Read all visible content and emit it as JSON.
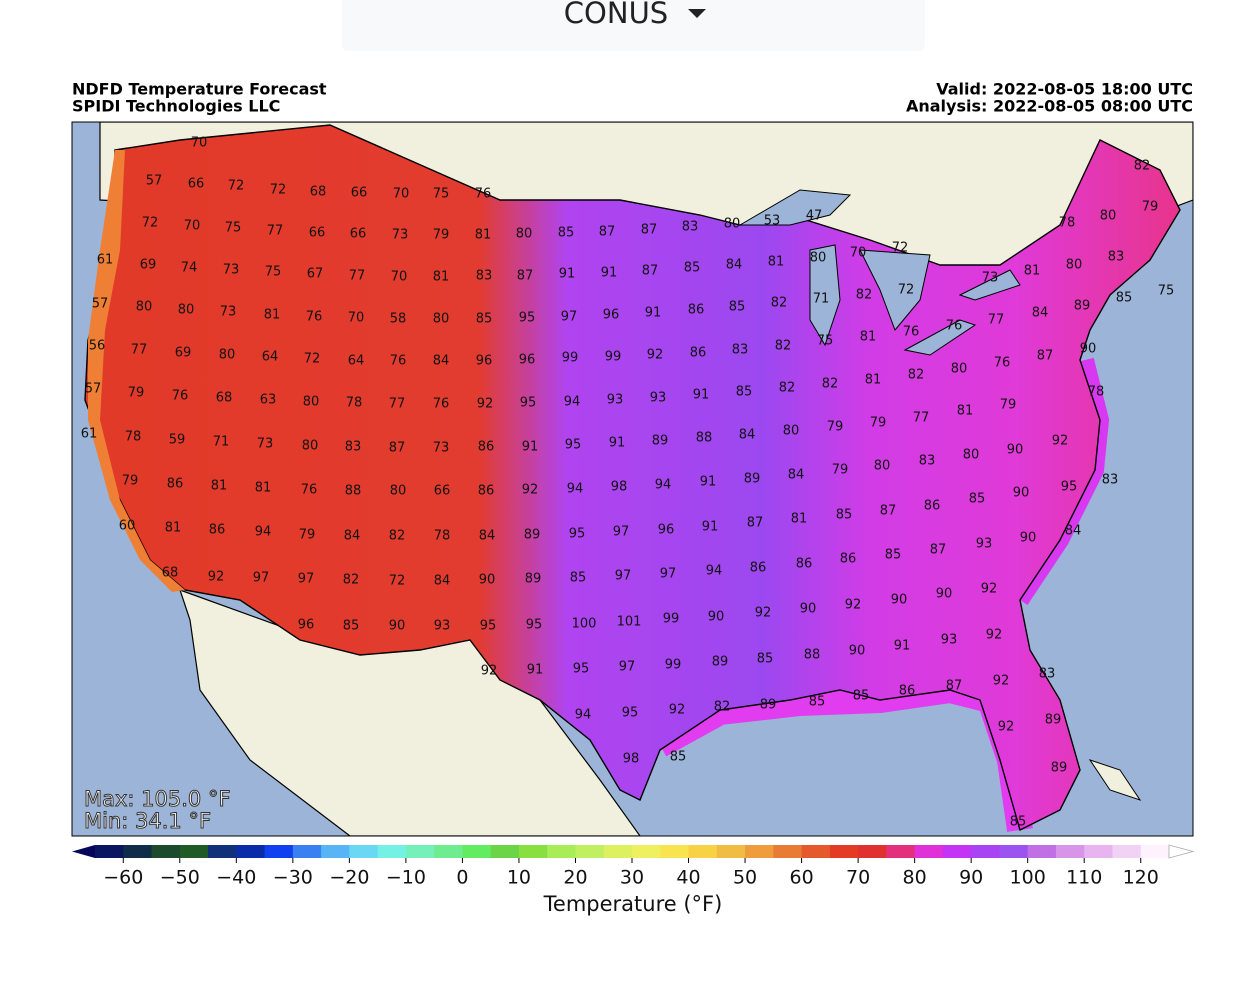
{
  "dropdown": {
    "label": "CONUS"
  },
  "header": {
    "title": "NDFD Temperature Forecast",
    "source": "SPIDI Technologies LLC",
    "valid": "Valid: 2022-08-05 18:00 UTC",
    "analysis": "Analysis: 2022-08-05 08:00 UTC"
  },
  "map": {
    "max_label": "Max: 105.0 °F",
    "min_label": "Min: 34.1 °F",
    "station_values": [
      70,
      57,
      66,
      72,
      72,
      68,
      66,
      70,
      75,
      76,
      72,
      70,
      75,
      77,
      66,
      66,
      73,
      79,
      81,
      80,
      85,
      87,
      87,
      83,
      80,
      53,
      47,
      78,
      80,
      82,
      79,
      61,
      69,
      74,
      73,
      75,
      67,
      77,
      70,
      81,
      83,
      87,
      91,
      91,
      87,
      85,
      84,
      81,
      80,
      70,
      72,
      73,
      81,
      80,
      83,
      57,
      80,
      80,
      73,
      81,
      76,
      70,
      58,
      80,
      85,
      95,
      97,
      96,
      91,
      86,
      85,
      82,
      71,
      82,
      72,
      77,
      84,
      89,
      85,
      75,
      56,
      77,
      69,
      80,
      64,
      72,
      64,
      76,
      84,
      96,
      96,
      99,
      99,
      92,
      86,
      83,
      82,
      75,
      81,
      76,
      76,
      90,
      57,
      79,
      76,
      68,
      63,
      80,
      78,
      77,
      76,
      92,
      95,
      94,
      93,
      93,
      91,
      85,
      82,
      82,
      81,
      82,
      80,
      76,
      87,
      78,
      61,
      78,
      59,
      71,
      73,
      80,
      83,
      87,
      73,
      86,
      91,
      95,
      91,
      89,
      88,
      84,
      80,
      79,
      79,
      77,
      81,
      79,
      92,
      79,
      86,
      81,
      81,
      76,
      88,
      80,
      66,
      86,
      92,
      94,
      98,
      94,
      91,
      89,
      84,
      79,
      80,
      83,
      80,
      90,
      95,
      83,
      60,
      81,
      86,
      94,
      79,
      84,
      82,
      78,
      84,
      89,
      95,
      97,
      96,
      91,
      87,
      81,
      85,
      87,
      86,
      85,
      90,
      90,
      93,
      87,
      85,
      86,
      86,
      86,
      84,
      68,
      92,
      97,
      97,
      82,
      72,
      84,
      90,
      89,
      85,
      97,
      97,
      94,
      92,
      90,
      92,
      90,
      90,
      92,
      96,
      85,
      90,
      93,
      95,
      95,
      100,
      101,
      99,
      90,
      89,
      85,
      88,
      90,
      91,
      93,
      92,
      92,
      91,
      95,
      97,
      99,
      92,
      83,
      85,
      86,
      87,
      94,
      95,
      92,
      82,
      89,
      85,
      92,
      89,
      98,
      85,
      89,
      85
    ]
  },
  "colorbar": {
    "label": "Temperature (°F)",
    "lim": [
      -65,
      125
    ],
    "ticks": [
      {
        "value": -60,
        "label": "−60"
      },
      {
        "value": -50,
        "label": "−50"
      },
      {
        "value": -40,
        "label": "−40"
      },
      {
        "value": -30,
        "label": "−30"
      },
      {
        "value": -20,
        "label": "−20"
      },
      {
        "value": -10,
        "label": "−10"
      },
      0,
      10,
      20,
      30,
      40,
      50,
      60,
      70,
      80,
      90,
      100,
      110,
      120
    ],
    "colors": [
      "#0a1660",
      "#0f2c48",
      "#1c4a2c",
      "#205a24",
      "#10307a",
      "#0a2ca8",
      "#1040f0",
      "#3a80f0",
      "#58b4f4",
      "#6ad8f4",
      "#74f0e4",
      "#74f0b8",
      "#70ec90",
      "#62ec62",
      "#6cd448",
      "#88e040",
      "#a8ec58",
      "#c0f060",
      "#dcf060",
      "#eef060",
      "#f8e450",
      "#f6d244",
      "#f0bc44",
      "#ee9c3c",
      "#e87c34",
      "#e45a2c",
      "#e43c24",
      "#e03030",
      "#e4307c",
      "#e030d8",
      "#c434f4",
      "#a844f4",
      "#9c54f0",
      "#c070e4",
      "#d894e8",
      "#e8b4f0",
      "#f2d2f4",
      "#fff2ff"
    ],
    "under_color": "#06065a",
    "over_color": "#ffffff"
  }
}
